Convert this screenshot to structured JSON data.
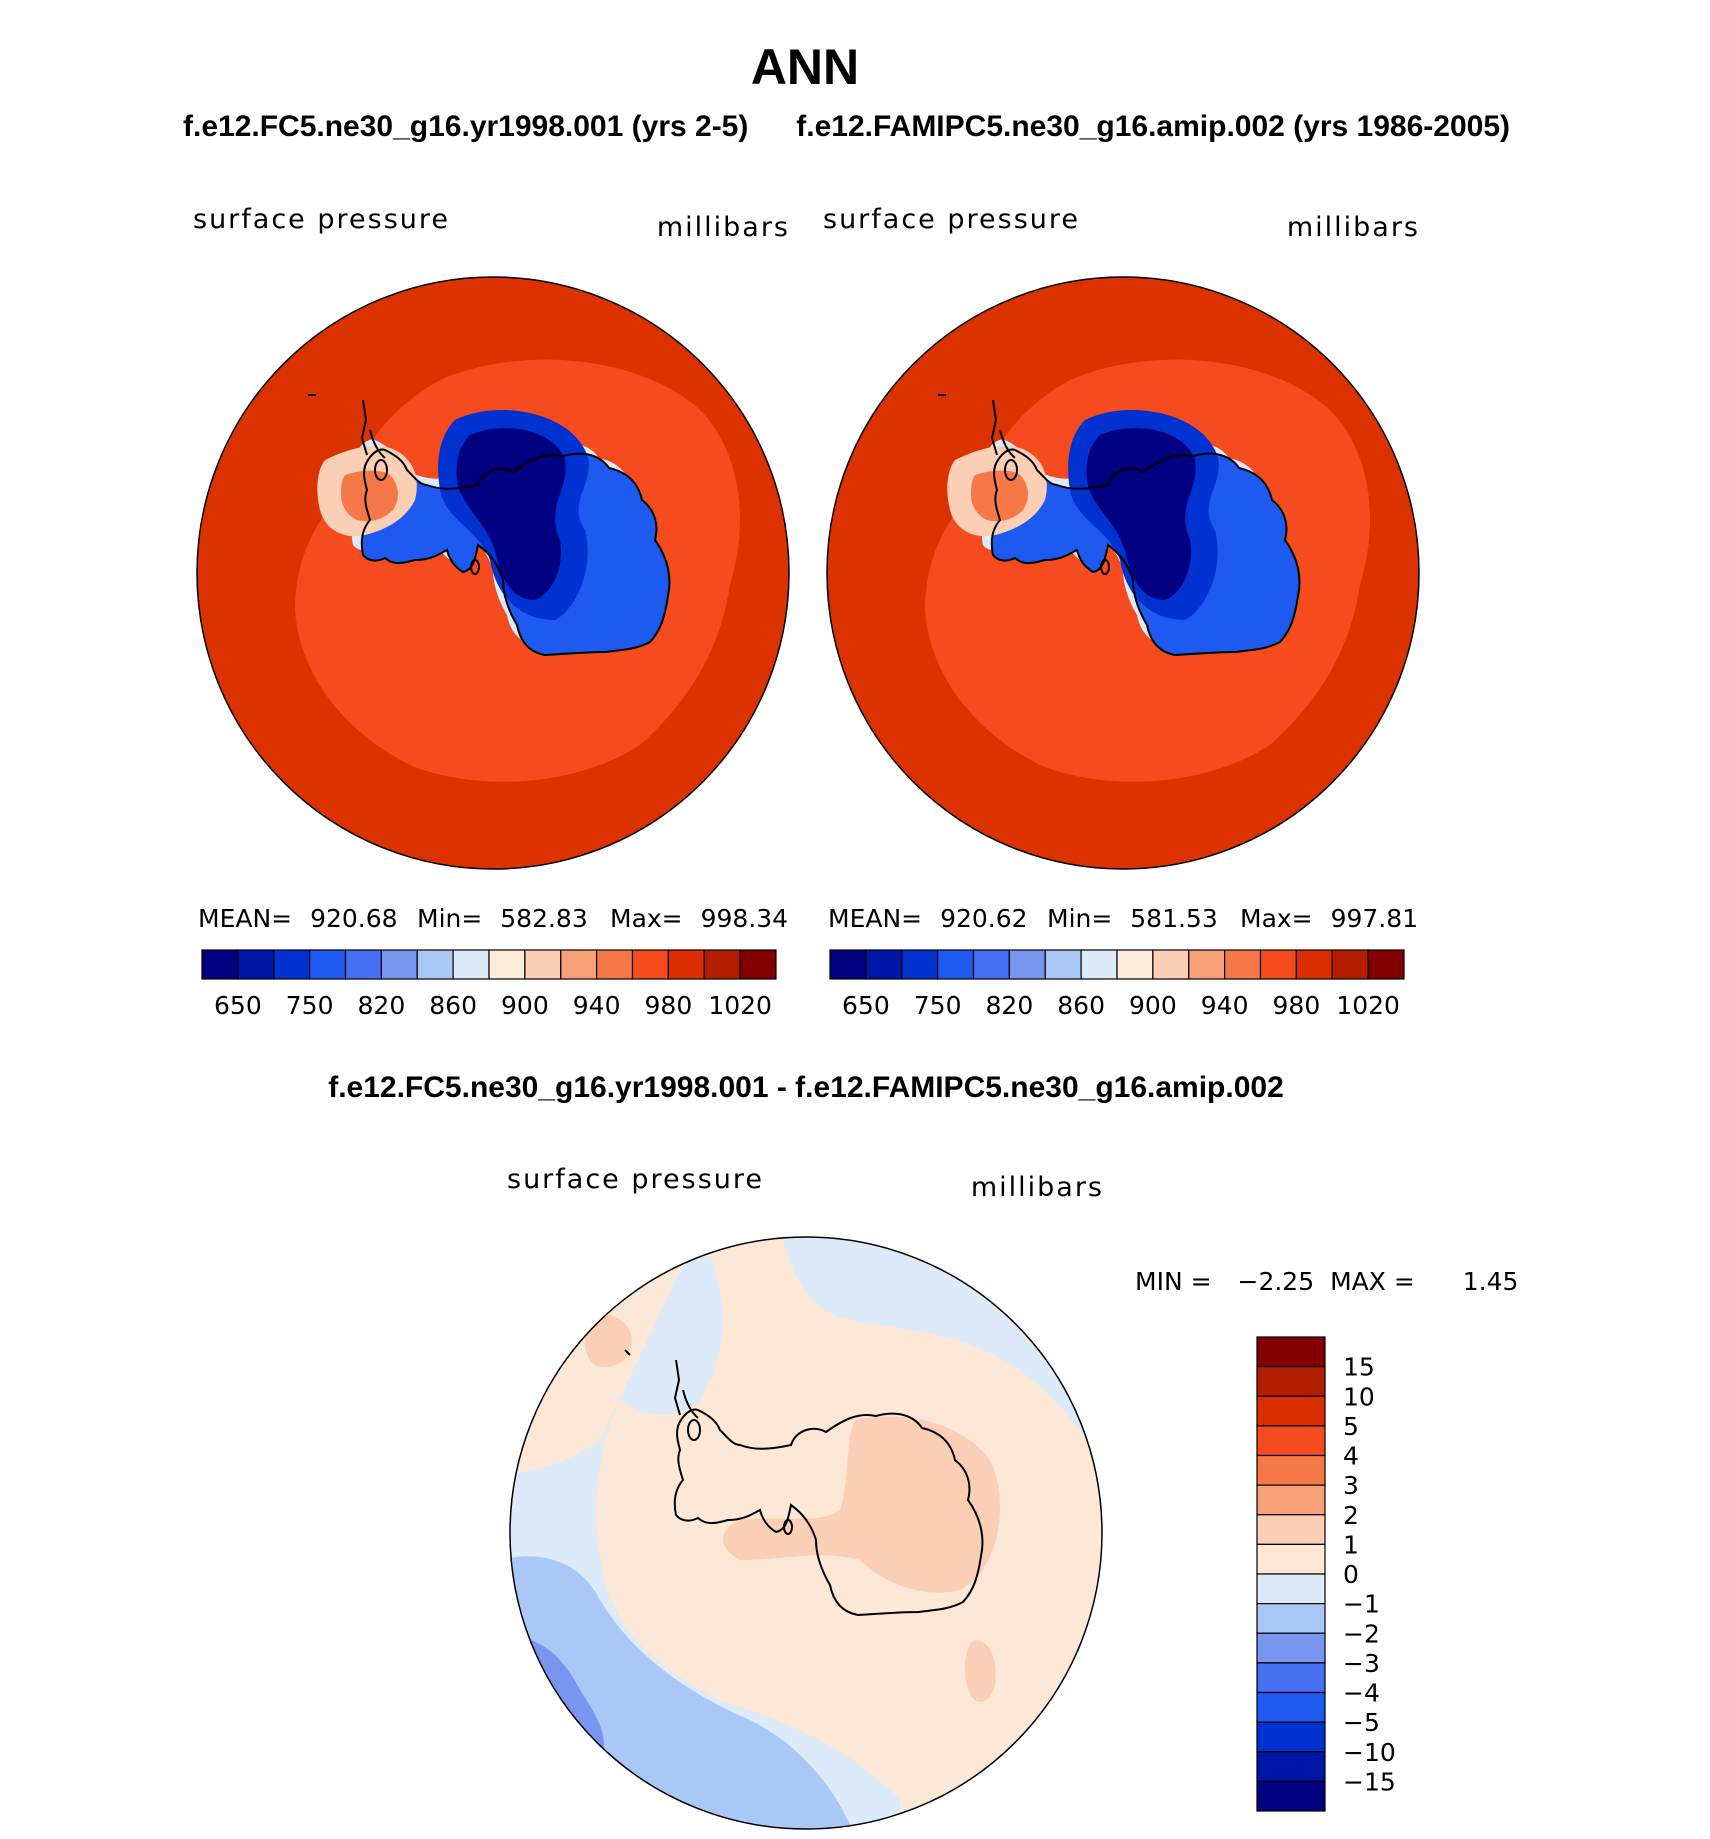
{
  "figure": {
    "title": "ANN",
    "panel_left_title": "f.e12.FC5.ne30_g16.yr1998.001 (yrs 2-5)",
    "panel_right_title": "f.e12.FAMIPC5.ne30_g16.amip.002 (yrs 1986-2005)",
    "diff_title": "f.e12.FC5.ne30_g16.yr1998.001 - f.e12.FAMIPC5.ne30_g16.amip.002"
  },
  "chart_data": [
    {
      "type": "map",
      "projection": "south-polar-stereographic",
      "variable_label": "surface pressure",
      "units_label": "millibars",
      "stats": {
        "mean_label": "MEAN=",
        "mean": "920.68",
        "min_label": "Min=",
        "min": "582.83",
        "max_label": "Max=",
        "max": "998.34"
      },
      "colorbar": {
        "orientation": "horizontal",
        "colors": [
          "#000080",
          "#0016a8",
          "#0032d2",
          "#1e5af0",
          "#466ef0",
          "#7896f0",
          "#aac8f5",
          "#dceaf9",
          "#fdebd9",
          "#fbcfb5",
          "#f8a078",
          "#f57846",
          "#f54b1e",
          "#dc2d00",
          "#b41e00",
          "#820000"
        ],
        "labels": [
          "650",
          "750",
          "820",
          "860",
          "900",
          "940",
          "980",
          "1020"
        ]
      }
    },
    {
      "type": "map",
      "projection": "south-polar-stereographic",
      "variable_label": "surface pressure",
      "units_label": "millibars",
      "stats": {
        "mean_label": "MEAN=",
        "mean": "920.62",
        "min_label": "Min=",
        "min": "581.53",
        "max_label": "Max=",
        "max": "997.81"
      },
      "colorbar": {
        "orientation": "horizontal",
        "colors": [
          "#000080",
          "#0016a8",
          "#0032d2",
          "#1e5af0",
          "#466ef0",
          "#7896f0",
          "#aac8f5",
          "#dceaf9",
          "#fdebd9",
          "#fbcfb5",
          "#f8a078",
          "#f57846",
          "#f54b1e",
          "#dc2d00",
          "#b41e00",
          "#820000"
        ],
        "labels": [
          "650",
          "750",
          "820",
          "860",
          "900",
          "940",
          "980",
          "1020"
        ]
      }
    },
    {
      "type": "map",
      "projection": "south-polar-stereographic",
      "variable_label": "surface pressure",
      "units_label": "millibars",
      "stats": {
        "min_label": "MIN =",
        "min": "−2.25",
        "max_label": "MAX =",
        "max": "1.45"
      },
      "colorbar": {
        "orientation": "vertical",
        "colors_top_to_bottom": [
          "#820000",
          "#b41e00",
          "#dc2d00",
          "#f54b1e",
          "#f57846",
          "#f8a078",
          "#fbcfb5",
          "#fde7d7",
          "#dceaf9",
          "#aac8f5",
          "#7896f0",
          "#466ef0",
          "#1e5af0",
          "#0032d2",
          "#0016a8",
          "#000080"
        ],
        "labels_top_to_bottom": [
          "15",
          "10",
          "5",
          "4",
          "3",
          "2",
          "1",
          "0",
          "−1",
          "−2",
          "−3",
          "−4",
          "−5",
          "−10",
          "−15"
        ]
      }
    }
  ]
}
